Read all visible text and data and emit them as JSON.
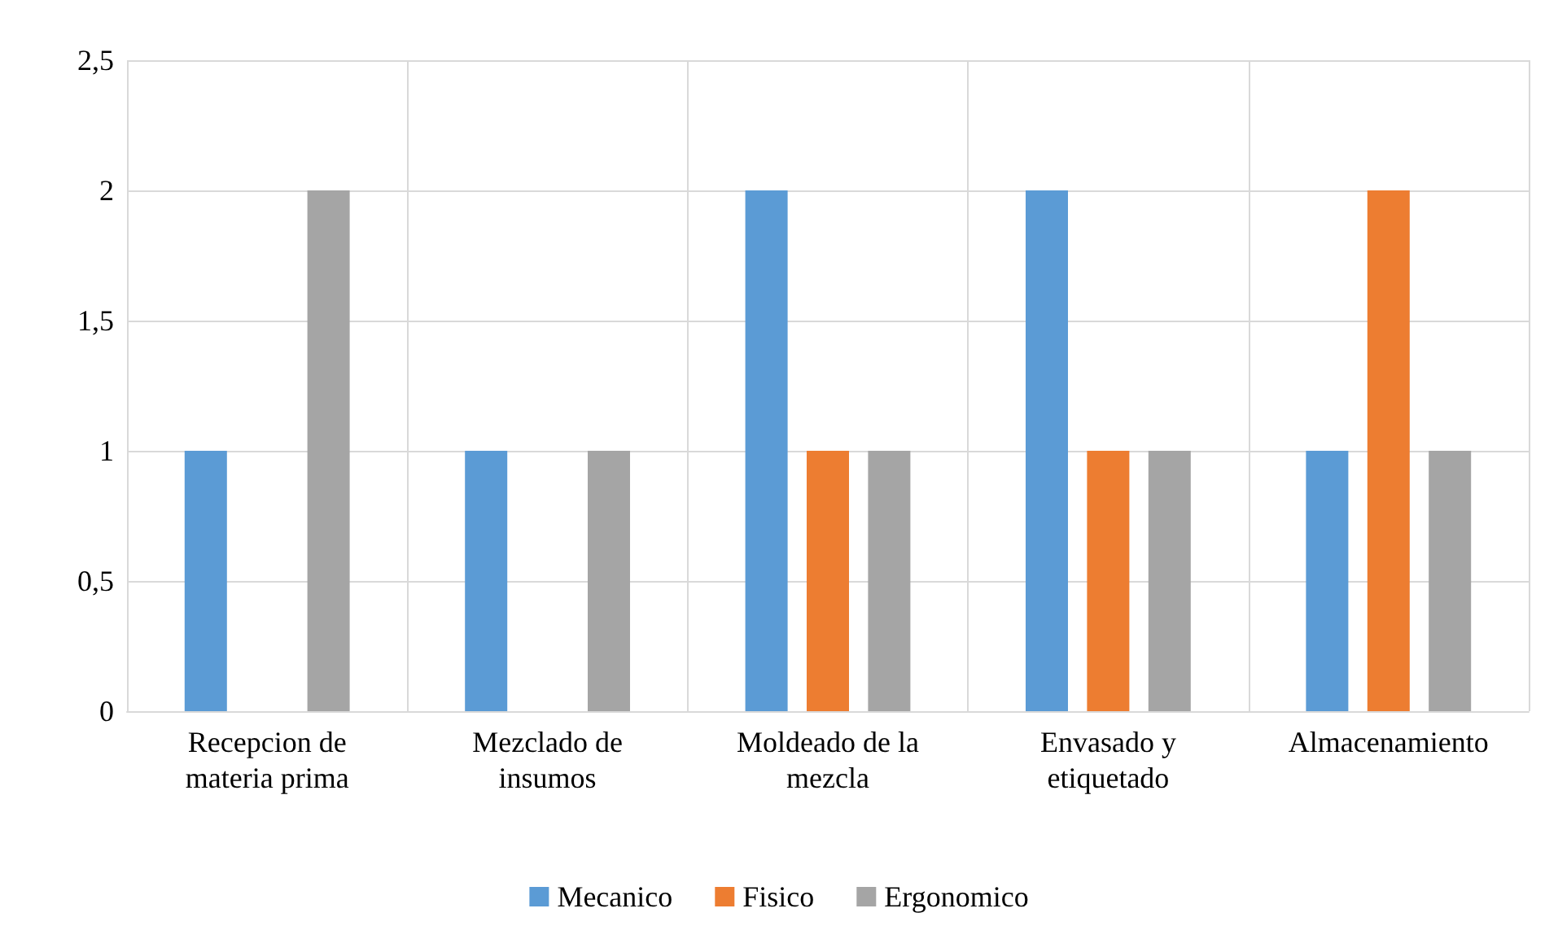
{
  "chart_data": {
    "type": "bar",
    "categories": [
      "Recepcion de materia prima",
      "Mezclado de insumos",
      "Moldeado de la mezcla",
      "Envasado y etiquetado",
      "Almacenamiento"
    ],
    "series": [
      {
        "name": "Mecanico",
        "color": "#5b9bd5",
        "values": [
          1,
          1,
          2,
          2,
          1
        ]
      },
      {
        "name": "Fisico",
        "color": "#ed7d31",
        "values": [
          0,
          0,
          1,
          1,
          2
        ]
      },
      {
        "name": "Ergonomico",
        "color": "#a5a5a5",
        "values": [
          2,
          1,
          1,
          1,
          1
        ]
      }
    ],
    "ylim": [
      0,
      2.5
    ],
    "yticks": [
      0,
      {
        "value": 0.5,
        "label": "0,5"
      },
      1,
      {
        "value": 1.5,
        "label": "1,5"
      },
      2,
      {
        "value": 2.5,
        "label": "2,5"
      }
    ],
    "grid": true,
    "legend": "bottom"
  }
}
